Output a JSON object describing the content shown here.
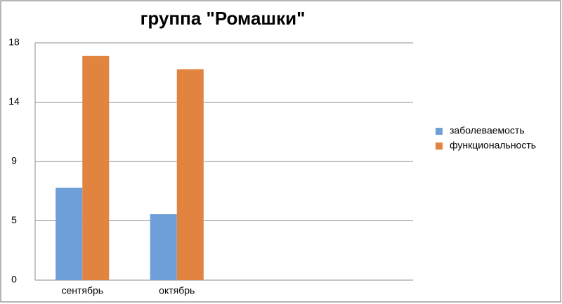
{
  "chart_data": {
    "type": "bar",
    "title": "группа \"Ромашки\"",
    "categories": [
      "сентябрь",
      "октябрь",
      null,
      null
    ],
    "series": [
      {
        "name": "заболеваемость",
        "color": "#6f9fd8",
        "values": [
          7,
          5,
          null,
          null
        ]
      },
      {
        "name": "функциональность",
        "color": "#e0843f",
        "values": [
          17,
          16,
          null,
          null
        ]
      }
    ],
    "ylim": [
      0,
      18
    ],
    "yticks": [
      0,
      {
        "value": 4.5,
        "label": "5"
      },
      9,
      {
        "value": 13.5,
        "label": "14"
      },
      18
    ],
    "grid": true,
    "legend": "right"
  }
}
